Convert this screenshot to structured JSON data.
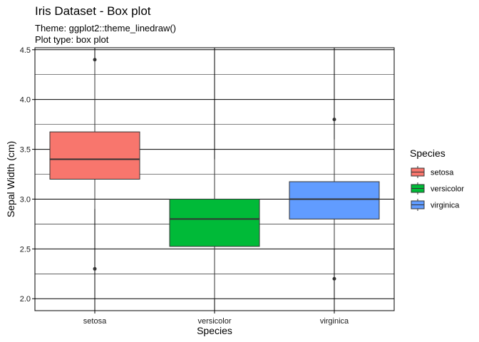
{
  "chart_data": {
    "type": "box",
    "title": "Iris Dataset - Box plot",
    "subtitle": [
      "Theme: ggplot2::theme_linedraw()",
      "Plot type: box plot"
    ],
    "xlabel": "Species",
    "ylabel": "Sepal Width (cm)",
    "ylim": [
      1.88,
      4.52
    ],
    "y_ticks": [
      "2.0",
      "2.5",
      "3.0",
      "3.5",
      "4.0",
      "4.5"
    ],
    "y_tick_values": [
      2.0,
      2.5,
      3.0,
      3.5,
      4.0,
      4.5
    ],
    "y_minor_values": [
      2.25,
      2.75,
      3.25,
      3.75,
      4.25
    ],
    "categories": [
      "setosa",
      "versicolor",
      "virginica"
    ],
    "grid": true,
    "legend": {
      "title": "Species",
      "position": "right",
      "items": [
        {
          "label": "setosa",
          "color": "#F8766D"
        },
        {
          "label": "versicolor",
          "color": "#00BA38"
        },
        {
          "label": "virginica",
          "color": "#619CFF"
        }
      ]
    },
    "boxes": [
      {
        "name": "setosa",
        "color": "#F8766D",
        "lower_whisker": 2.9,
        "q1": 3.2,
        "median": 3.4,
        "q3": 3.675,
        "upper_whisker": 4.4,
        "outliers": [
          4.4,
          2.3
        ]
      },
      {
        "name": "versicolor",
        "color": "#00BA38",
        "lower_whisker": 2.0,
        "q1": 2.525,
        "median": 2.8,
        "q3": 3.0,
        "upper_whisker": 3.4,
        "outliers": []
      },
      {
        "name": "virginica",
        "color": "#619CFF",
        "lower_whisker": 2.5,
        "q1": 2.8,
        "median": 3.0,
        "q3": 3.175,
        "upper_whisker": 3.6,
        "outliers": [
          3.8,
          2.2
        ]
      }
    ]
  }
}
